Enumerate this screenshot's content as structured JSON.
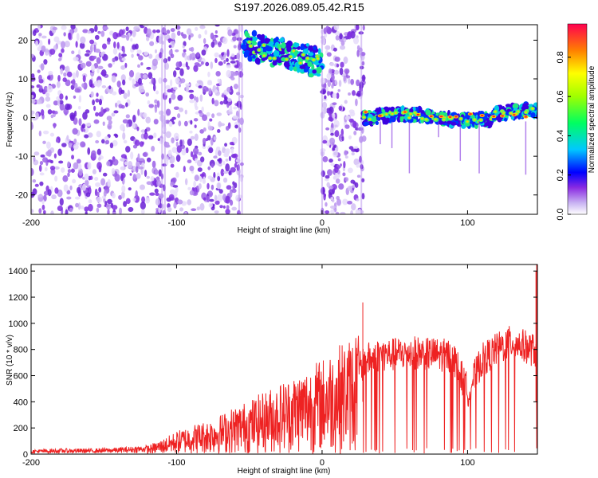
{
  "title": "S197.2026.089.05.42.R15",
  "chart_data": [
    {
      "type": "heatmap",
      "xlabel": "Height of straight line (km)",
      "ylabel": "Frequency (Hz)",
      "xlim": [
        -200,
        148
      ],
      "ylim": [
        -25,
        24
      ],
      "xticks": [
        -200,
        -100,
        0,
        100
      ],
      "yticks": [
        20,
        10,
        0,
        -10,
        -20
      ],
      "colorbar": {
        "label": "Normalized spectral amplitude",
        "range": [
          0,
          0.97
        ],
        "ticks": [
          0.0,
          0.2,
          0.4,
          0.6,
          0.8
        ]
      },
      "regions": [
        {
          "x": [
            -200,
            -55
          ],
          "freq": [
            -25,
            24
          ],
          "amplitude": "low broadband noise"
        },
        {
          "x": [
            -55,
            0
          ],
          "freq": [
            12,
            22
          ],
          "amplitude": "strong band near 15 Hz"
        },
        {
          "x": [
            0,
            30
          ],
          "freq": [
            -25,
            24
          ],
          "amplitude": "low broadband noise"
        },
        {
          "x": [
            28,
            148
          ],
          "freq": [
            -2,
            3
          ],
          "amplitude": "strong narrow band near 0 Hz"
        }
      ]
    },
    {
      "type": "line",
      "xlabel": "Height of straight line (km)",
      "ylabel": "SNR (10 * v/v)",
      "xlim": [
        -200,
        148
      ],
      "ylim": [
        0,
        1450
      ],
      "xticks": [
        -200,
        -100,
        0,
        100
      ],
      "yticks": [
        0,
        200,
        400,
        600,
        800,
        1000,
        1200,
        1400
      ],
      "series": [
        {
          "name": "SNR",
          "color": "#ee2222",
          "x": [
            -200,
            -180,
            -160,
            -140,
            -120,
            -110,
            -100,
            -90,
            -80,
            -70,
            -60,
            -50,
            -40,
            -30,
            -20,
            -10,
            0,
            10,
            20,
            25,
            30,
            40,
            50,
            60,
            70,
            80,
            90,
            100,
            110,
            120,
            130,
            140,
            148
          ],
          "y": [
            20,
            25,
            25,
            30,
            40,
            70,
            110,
            140,
            160,
            190,
            230,
            260,
            300,
            340,
            380,
            420,
            460,
            520,
            560,
            640,
            720,
            760,
            760,
            780,
            770,
            760,
            750,
            480,
            720,
            800,
            860,
            820,
            780
          ]
        }
      ]
    }
  ]
}
